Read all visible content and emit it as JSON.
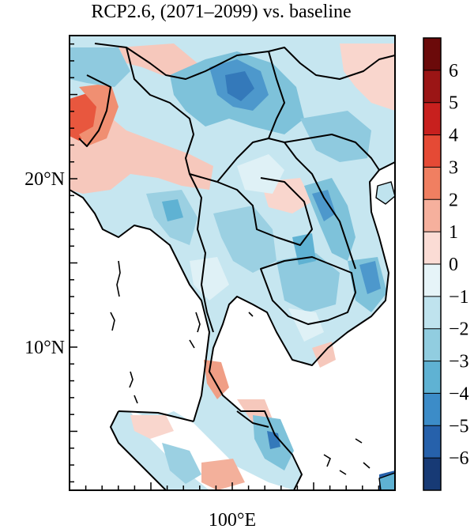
{
  "map": {
    "title": "RCP2.6, (2071–2099) vs. baseline",
    "lat_labels": [
      {
        "text": "20°N",
        "value": 20
      },
      {
        "text": "10°N",
        "value": 10
      }
    ],
    "lon_labels": [
      {
        "text": "100°E",
        "value": 100
      }
    ],
    "lat_range": [
      1.5,
      28.5
    ],
    "lon_range": [
      90,
      110
    ],
    "colorbar": {
      "levels": [
        6,
        5,
        4,
        3,
        2,
        1,
        0,
        -1,
        -2,
        -3,
        -4,
        -5,
        -6
      ],
      "level_labels": [
        "6",
        "5",
        "4",
        "3",
        "2",
        "1",
        "0",
        "−1",
        "−2",
        "−3",
        "−4",
        "−5",
        "−6"
      ],
      "colors": [
        "#6b0a0a",
        "#9b1515",
        "#c8201e",
        "#e54a35",
        "#f07f61",
        "#f6b09d",
        "#fbdcd5",
        "#e6f4f8",
        "#bfe3ee",
        "#91cde0",
        "#5fb2d3",
        "#3c8cc8",
        "#2661ab",
        "#173a75"
      ]
    }
  }
}
